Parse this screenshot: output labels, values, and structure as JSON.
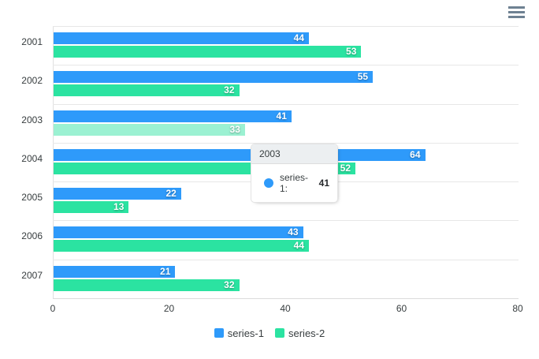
{
  "chart_data": {
    "type": "bar",
    "orientation": "horizontal",
    "categories": [
      "2001",
      "2002",
      "2003",
      "2004",
      "2005",
      "2006",
      "2007"
    ],
    "series": [
      {
        "name": "series-1",
        "color": "#2E9AFA",
        "values": [
          44,
          55,
          41,
          64,
          22,
          43,
          21
        ]
      },
      {
        "name": "series-2",
        "color": "#2BE3A1",
        "values": [
          53,
          32,
          33,
          52,
          13,
          44,
          32
        ]
      }
    ],
    "bar_overrides": [
      {
        "category_index": 2,
        "series_index": 1,
        "color": "#9BF1D2",
        "note": "hover-lightened bar"
      }
    ],
    "title": "",
    "xlabel": "",
    "ylabel": "",
    "xlim": [
      0,
      80
    ],
    "x_ticks": [
      0,
      20,
      40,
      60,
      80
    ],
    "grid": "horizontal-category-separators",
    "legend_position": "bottom",
    "value_labels": "inside-end-white-bold"
  },
  "tooltip": {
    "title": "2003",
    "rows": [
      {
        "marker_color": "#2E9AFA",
        "label": "series-1:",
        "value": "41"
      }
    ]
  },
  "toolbar": {
    "menu_icon": "hamburger-menu"
  },
  "colors": {
    "grid": "#e7e7e7",
    "axis_label": "#373d3f",
    "tooltip_header_bg": "#ECEFF1",
    "menu_icon": "#6E8192"
  }
}
